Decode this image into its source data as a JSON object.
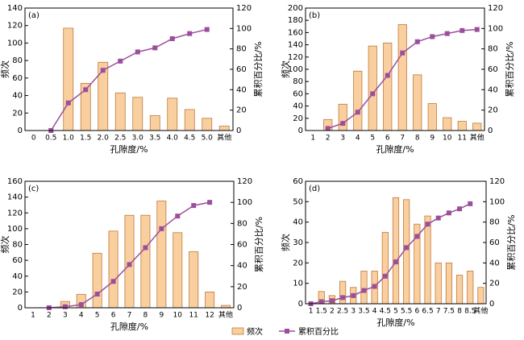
{
  "chart_data": [
    {
      "type": "combo",
      "label": "(a)",
      "xlabel": "孔隙度/%",
      "ylabel": "频次",
      "y2label": "累积百分比/%",
      "categories": [
        "0",
        "0.5",
        "1.0",
        "1.5",
        "2.0",
        "2.5",
        "3.0",
        "3.5",
        "4.0",
        "4.5",
        "5.0",
        "其他"
      ],
      "series": [
        {
          "name": "频次",
          "color": "#f9cfa0",
          "values": [
            null,
            null,
            117,
            54,
            78,
            43,
            38,
            17,
            37,
            24,
            14,
            5
          ]
        },
        {
          "name": "累积百分比",
          "color": "#9b4f9b",
          "axis": "y2",
          "values": [
            null,
            0,
            27,
            40,
            59,
            68,
            77,
            81,
            90,
            95,
            99,
            null
          ]
        }
      ],
      "ylim": [
        0,
        140
      ],
      "yticks": [
        0,
        20,
        40,
        60,
        80,
        100,
        120,
        140
      ],
      "y2lim": [
        0,
        120
      ],
      "y2ticks": [
        0,
        20,
        40,
        60,
        80,
        100,
        120
      ]
    },
    {
      "type": "combo",
      "label": "(b)",
      "xlabel": "孔隙度/%",
      "ylabel": "频次",
      "y2label": "累积百分比/%",
      "categories": [
        "1",
        "2",
        "3",
        "4",
        "5",
        "6",
        "7",
        "8",
        "9",
        "10",
        "11",
        "其他"
      ],
      "series": [
        {
          "color": "#f9cfa0",
          "values": [
            null,
            18,
            43,
            97,
            138,
            143,
            173,
            91,
            44,
            21,
            15,
            12
          ]
        },
        {
          "color": "#9b4f9b",
          "axis": "y2",
          "values": [
            null,
            2,
            7,
            18,
            36,
            54,
            76,
            87,
            92,
            95,
            98,
            99
          ]
        }
      ],
      "ylim": [
        0,
        200
      ],
      "yticks": [
        0,
        20,
        40,
        60,
        80,
        100,
        120,
        140,
        160,
        180,
        200
      ],
      "y2lim": [
        0,
        120
      ],
      "y2ticks": [
        0,
        20,
        40,
        60,
        80,
        100,
        120
      ]
    },
    {
      "type": "combo",
      "label": "(c)",
      "xlabel": "孔隙度/%",
      "ylabel": "频次",
      "y2label": "累积百分比/%",
      "categories": [
        "1",
        "2",
        "3",
        "4",
        "5",
        "6",
        "7",
        "8",
        "9",
        "10",
        "11",
        "12",
        "其他"
      ],
      "series": [
        {
          "color": "#f9cfa0",
          "values": [
            null,
            null,
            8,
            17,
            69,
            97,
            117,
            117,
            135,
            95,
            71,
            20,
            3
          ]
        },
        {
          "color": "#9b4f9b",
          "axis": "y2",
          "values": [
            null,
            0,
            1,
            3,
            13,
            25,
            41,
            57,
            75,
            87,
            97,
            100,
            null
          ]
        }
      ],
      "ylim": [
        0,
        160
      ],
      "yticks": [
        0,
        20,
        40,
        60,
        80,
        100,
        120,
        140,
        160
      ],
      "y2lim": [
        0,
        120
      ],
      "y2ticks": [
        0,
        20,
        40,
        60,
        80,
        100,
        120
      ]
    },
    {
      "type": "combo",
      "label": "(d)",
      "xlabel": "孔隙度/%",
      "ylabel": "频次",
      "y2label": "累积百分比/%",
      "categories": [
        "1",
        "1.5",
        "2",
        "2.5",
        "3",
        "3.5",
        "4",
        "4.5",
        "5",
        "5.5",
        "6",
        "6.5",
        "7",
        "7.5",
        "8",
        "8.5",
        "其他"
      ],
      "series": [
        {
          "color": "#f9cfa0",
          "values": [
            null,
            6,
            4,
            11,
            8,
            16,
            16,
            35,
            52,
            51,
            39,
            43,
            20,
            20,
            14,
            16,
            8
          ]
        },
        {
          "color": "#9b4f9b",
          "axis": "y2",
          "values": [
            0,
            2,
            3,
            6,
            8,
            13,
            17,
            27,
            41,
            55,
            66,
            78,
            84,
            89,
            93,
            98,
            null
          ]
        }
      ],
      "ylim": [
        0,
        60
      ],
      "yticks": [
        0,
        10,
        20,
        30,
        40,
        50,
        60
      ],
      "y2lim": [
        0,
        120
      ],
      "y2ticks": [
        0,
        20,
        40,
        60,
        80,
        100,
        120
      ]
    }
  ]
}
